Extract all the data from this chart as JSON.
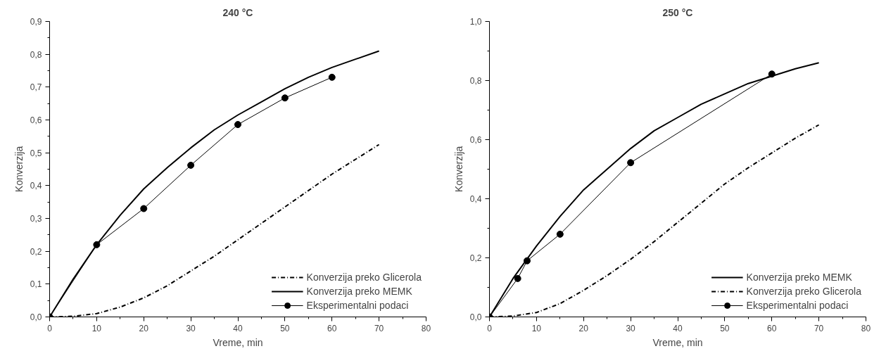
{
  "chart_data": [
    {
      "type": "line",
      "title": "240 °C",
      "xlabel": "Vreme, min",
      "ylabel": "Konverzija",
      "xlim": [
        0,
        80
      ],
      "xticks": [
        0,
        10,
        20,
        30,
        40,
        50,
        60,
        70,
        80
      ],
      "ylim": [
        0,
        0.9
      ],
      "yticks": [
        {
          "value": 0,
          "label": "0,0"
        },
        {
          "value": 0.1,
          "label": "0,1"
        },
        {
          "value": 0.2,
          "label": "0,2"
        },
        {
          "value": 0.3,
          "label": "0,3"
        },
        {
          "value": 0.4,
          "label": "0,4"
        },
        {
          "value": 0.5,
          "label": "0,5"
        },
        {
          "value": 0.6,
          "label": "0,6"
        },
        {
          "value": 0.7,
          "label": "0,7"
        },
        {
          "value": 0.8,
          "label": "0,8"
        },
        {
          "value": 0.9,
          "label": "0,9"
        }
      ],
      "grid": false,
      "legend": "bottom right",
      "series": [
        {
          "name": "Konverzija preko Glicerola",
          "color": "#000000",
          "line_style": "dashed",
          "marker": "none",
          "x": [
            0,
            5,
            10,
            15,
            20,
            25,
            30,
            35,
            40,
            45,
            50,
            55,
            60,
            65,
            70
          ],
          "values": [
            0,
            0.002,
            0.01,
            0.03,
            0.058,
            0.095,
            0.14,
            0.185,
            0.235,
            0.285,
            0.335,
            0.385,
            0.435,
            0.48,
            0.525
          ]
        },
        {
          "name": "Konverzija preko MEMK",
          "color": "#000000",
          "line_style": "solid",
          "marker": "none",
          "x": [
            0,
            5,
            10,
            15,
            20,
            25,
            30,
            35,
            40,
            45,
            50,
            55,
            60,
            65,
            70
          ],
          "values": [
            0,
            0.115,
            0.22,
            0.31,
            0.39,
            0.455,
            0.515,
            0.57,
            0.615,
            0.655,
            0.695,
            0.73,
            0.76,
            0.785,
            0.81
          ]
        },
        {
          "name": "Eksperimentalni podaci",
          "color": "#000000",
          "line_style": "solid",
          "marker": "circle",
          "x": [
            0,
            10,
            20,
            30,
            40,
            50,
            60
          ],
          "values": [
            0,
            0.22,
            0.33,
            0.462,
            0.586,
            0.667,
            0.73
          ]
        }
      ]
    },
    {
      "type": "line",
      "title": "250 °C",
      "xlabel": "Vreme, min",
      "ylabel": "Konverzija",
      "xlim": [
        0,
        80
      ],
      "xticks": [
        0,
        10,
        20,
        30,
        40,
        50,
        60,
        70,
        80
      ],
      "ylim": [
        0,
        1.0
      ],
      "yticks": [
        {
          "value": 0,
          "label": "0,0"
        },
        {
          "value": 0.2,
          "label": "0,2"
        },
        {
          "value": 0.4,
          "label": "0,4"
        },
        {
          "value": 0.6,
          "label": "0,6"
        },
        {
          "value": 0.8,
          "label": "0,8"
        },
        {
          "value": 1.0,
          "label": "1,0"
        }
      ],
      "grid": false,
      "legend": "bottom right",
      "series": [
        {
          "name": "Konverzija preko MEMK",
          "color": "#000000",
          "line_style": "solid",
          "marker": "none",
          "x": [
            0,
            5,
            10,
            15,
            20,
            25,
            30,
            35,
            40,
            45,
            50,
            55,
            60,
            65,
            70
          ],
          "values": [
            0,
            0.13,
            0.24,
            0.34,
            0.43,
            0.5,
            0.57,
            0.63,
            0.675,
            0.72,
            0.755,
            0.79,
            0.815,
            0.84,
            0.86
          ]
        },
        {
          "name": "Konverzija preko Glicerola",
          "color": "#000000",
          "line_style": "dashed",
          "marker": "none",
          "x": [
            0,
            5,
            10,
            15,
            20,
            25,
            30,
            35,
            40,
            45,
            50,
            55,
            60,
            65,
            70
          ],
          "values": [
            0,
            0.003,
            0.015,
            0.045,
            0.09,
            0.14,
            0.195,
            0.255,
            0.32,
            0.385,
            0.45,
            0.505,
            0.555,
            0.605,
            0.65
          ]
        },
        {
          "name": "Eksperimentalni podaci",
          "color": "#000000",
          "line_style": "solid",
          "marker": "circle",
          "x": [
            0,
            6,
            8,
            15,
            30,
            60
          ],
          "values": [
            0,
            0.13,
            0.19,
            0.28,
            0.522,
            0.822
          ]
        }
      ]
    }
  ]
}
